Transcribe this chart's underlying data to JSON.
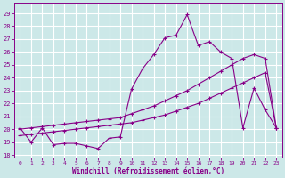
{
  "xlabel": "Windchill (Refroidissement éolien,°C)",
  "background_color": "#cce8e8",
  "grid_color": "#ffffff",
  "line_color": "#880088",
  "x_ticks": [
    0,
    1,
    2,
    3,
    4,
    5,
    6,
    7,
    8,
    9,
    10,
    11,
    12,
    13,
    14,
    15,
    16,
    17,
    18,
    19,
    20,
    21,
    22,
    23
  ],
  "y_ticks": [
    18,
    19,
    20,
    21,
    22,
    23,
    24,
    25,
    26,
    27,
    28,
    29
  ],
  "ylim": [
    17.8,
    29.8
  ],
  "xlim": [
    -0.5,
    23.5
  ],
  "series1_x": [
    0,
    1,
    2,
    3,
    4,
    5,
    6,
    7,
    8,
    9,
    10,
    11,
    12,
    13,
    14,
    15,
    16,
    17,
    18,
    19,
    20,
    21,
    22,
    23
  ],
  "series1_y": [
    20.1,
    19.0,
    20.1,
    18.8,
    18.9,
    18.9,
    18.7,
    18.5,
    19.3,
    19.4,
    23.1,
    24.7,
    25.8,
    27.1,
    27.3,
    28.9,
    26.5,
    26.8,
    26.0,
    25.5,
    20.1,
    23.2,
    21.5,
    20.1
  ],
  "series2_x": [
    0,
    1,
    2,
    3,
    4,
    5,
    6,
    7,
    8,
    9,
    10,
    11,
    12,
    13,
    14,
    15,
    16,
    17,
    18,
    19,
    20,
    21,
    22,
    23
  ],
  "series2_y": [
    19.5,
    19.6,
    19.7,
    19.8,
    19.9,
    20.0,
    20.1,
    20.2,
    20.3,
    20.4,
    20.5,
    20.7,
    20.9,
    21.1,
    21.4,
    21.7,
    22.0,
    22.4,
    22.8,
    23.2,
    23.6,
    24.0,
    24.4,
    20.1
  ],
  "series3_x": [
    0,
    1,
    2,
    3,
    4,
    5,
    6,
    7,
    8,
    9,
    10,
    11,
    12,
    13,
    14,
    15,
    16,
    17,
    18,
    19,
    20,
    21,
    22,
    23
  ],
  "series3_y": [
    20.0,
    20.1,
    20.2,
    20.3,
    20.4,
    20.5,
    20.6,
    20.7,
    20.8,
    20.9,
    21.2,
    21.5,
    21.8,
    22.2,
    22.6,
    23.0,
    23.5,
    24.0,
    24.5,
    25.0,
    25.5,
    25.8,
    25.5,
    20.1
  ]
}
